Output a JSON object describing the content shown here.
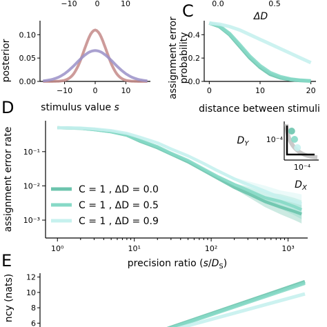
{
  "figure": {
    "top_partial": {
      "tick_labels": [
        "−10",
        "0",
        "10"
      ],
      "right_tick_labels": [
        "0.0",
        "0.5"
      ],
      "right_axis_label": "ΔD"
    }
  },
  "chart_data": [
    {
      "panel": "",
      "type": "line",
      "xlabel": "stimulus value s",
      "ylabel": "posterior",
      "xlim": [
        -18,
        18
      ],
      "ylim": [
        0,
        0.13
      ],
      "xticks": [
        "−10",
        "0",
        "10"
      ],
      "xtick_values": [
        -10,
        0,
        10
      ],
      "yticks": [
        "0.00",
        "0.05",
        "0.10"
      ],
      "ytick_values": [
        0,
        0.05,
        0.1
      ],
      "series": [
        {
          "color": "#c48a88",
          "shape": "gaussian",
          "mean": 0,
          "sd": 3.6,
          "peak": 0.11
        },
        {
          "color": "#9a90c8",
          "shape": "gaussian",
          "mean": 0,
          "sd": 6.0,
          "peak": 0.066
        }
      ]
    },
    {
      "panel": "C",
      "type": "line",
      "xlabel": "distance between stimuli",
      "ylabel": "assignment error probability",
      "xlim": [
        -1,
        21
      ],
      "ylim": [
        0,
        0.52
      ],
      "xticks": [
        "0",
        "10",
        "20"
      ],
      "xtick_values": [
        0,
        10,
        20
      ],
      "yticks": [
        "0.0",
        "0.2",
        "0.4"
      ],
      "ytick_values": [
        0,
        0.2,
        0.4
      ],
      "x": [
        0,
        2,
        4,
        6,
        8,
        10,
        12,
        14,
        16,
        18,
        20
      ],
      "series": [
        {
          "color": "#6cc4ad",
          "values": [
            0.5,
            0.47,
            0.4,
            0.3,
            0.2,
            0.12,
            0.06,
            0.03,
            0.015,
            0.007,
            0.003
          ]
        },
        {
          "color": "#86d9c6",
          "values": [
            0.5,
            0.475,
            0.41,
            0.315,
            0.215,
            0.135,
            0.075,
            0.04,
            0.02,
            0.01,
            0.005
          ]
        },
        {
          "color": "#c6f1ee",
          "values": [
            0.5,
            0.49,
            0.47,
            0.44,
            0.4,
            0.36,
            0.32,
            0.28,
            0.24,
            0.2,
            0.16
          ]
        }
      ]
    },
    {
      "panel": "D",
      "type": "line",
      "xlabel": "precision ratio (s/D_S)",
      "ylabel": "assignment error rate",
      "xscale": "log",
      "yscale": "log",
      "xlim": [
        0.7,
        1800
      ],
      "ylim": [
        0.0003,
        0.8
      ],
      "xticks": [
        "10⁰",
        "10¹",
        "10²",
        "10³"
      ],
      "xtick_values": [
        1,
        10,
        100,
        1000
      ],
      "yticks": [
        "10⁻¹",
        "10⁻²",
        "10⁻³"
      ],
      "ytick_values": [
        0.1,
        0.01,
        0.001
      ],
      "legend_position": "lower-left",
      "x": [
        1,
        2,
        3,
        5,
        8,
        12,
        20,
        30,
        50,
        80,
        120,
        200,
        300,
        500,
        800,
        1200,
        1500
      ],
      "series": [
        {
          "name": "C = 1 , ΔD = 0.0",
          "color": "#6cc4ad",
          "values": [
            0.5,
            0.48,
            0.44,
            0.38,
            0.3,
            0.2,
            0.13,
            0.085,
            0.05,
            0.028,
            0.017,
            0.009,
            0.006,
            0.0035,
            0.0024,
            0.0018,
            0.0015
          ]
        },
        {
          "name": "C = 1 , ΔD = 0.5",
          "color": "#86d9c6",
          "values": [
            0.5,
            0.48,
            0.44,
            0.38,
            0.3,
            0.21,
            0.14,
            0.09,
            0.055,
            0.031,
            0.019,
            0.011,
            0.0075,
            0.0045,
            0.0035,
            0.0025,
            0.002
          ]
        },
        {
          "name": "C = 1 , ΔD = 0.9",
          "color": "#c6f1ee",
          "values": [
            0.5,
            0.49,
            0.46,
            0.41,
            0.34,
            0.26,
            0.18,
            0.12,
            0.075,
            0.045,
            0.028,
            0.016,
            0.011,
            0.007,
            0.0045,
            0.0035,
            0.003
          ]
        }
      ],
      "inset": {
        "xlabel": "D_X",
        "ylabel": "D_Y",
        "xtick": "10⁻⁴",
        "ytick": "10⁻⁴",
        "points": [
          0.2,
          0.5,
          0.8
        ]
      }
    },
    {
      "panel": "E",
      "type": "line",
      "ylabel": "ncy (nats)",
      "ylim": [
        5.5,
        12.5
      ],
      "yticks": [
        "6",
        "8",
        "10",
        "12"
      ],
      "ytick_values": [
        6,
        8,
        10,
        12
      ],
      "series": [
        {
          "color": "#6cc4ad",
          "x": [
            0,
            1
          ],
          "values": [
            4.6,
            11.4
          ]
        },
        {
          "color": "#86d9c6",
          "x": [
            0,
            1
          ],
          "values": [
            4.5,
            11.2
          ]
        },
        {
          "color": "#c6f1ee",
          "x": [
            0,
            1
          ],
          "values": [
            4.4,
            9.8
          ]
        }
      ]
    }
  ]
}
